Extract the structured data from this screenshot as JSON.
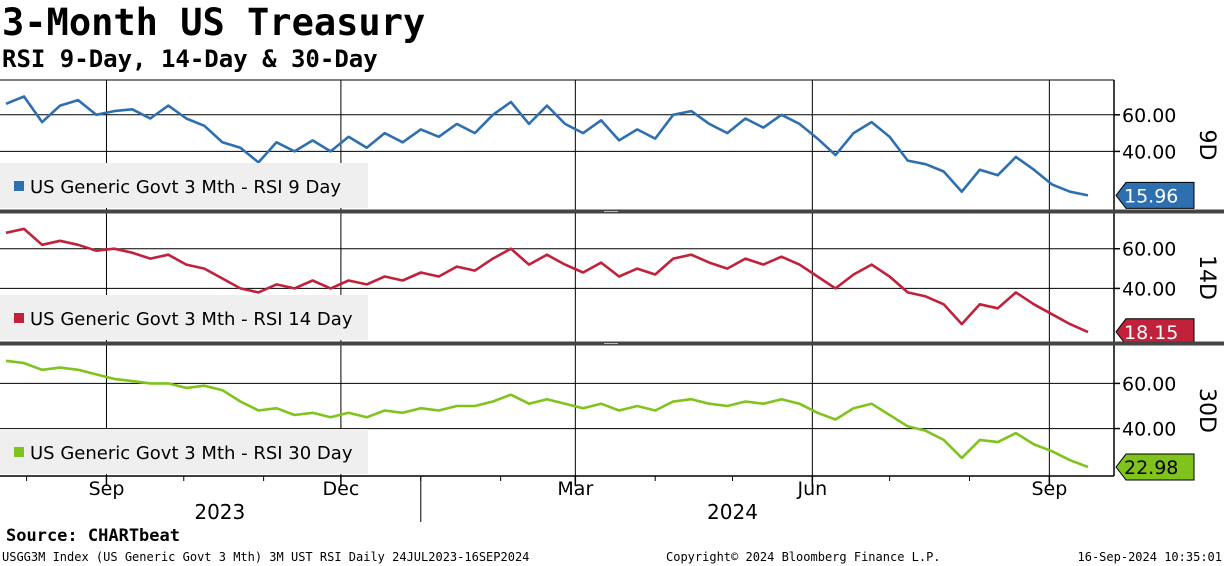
{
  "header": {
    "title": "3-Month US Treasury",
    "subtitle": "RSI 9-Day, 14-Day & 30-Day"
  },
  "footer": {
    "source": "Source: CHARTbeat",
    "left": "USGG3M Index (US Generic Govt 3 Mth) 3M UST RSI  Daily 24JUL2023-16SEP2024",
    "center": "Copyright© 2024 Bloomberg Finance L.P.",
    "right": "16-Sep-2024 10:35:01"
  },
  "chart_data": {
    "type": "line",
    "x_range": [
      "2023-07-24",
      "2024-09-16"
    ],
    "x_tick_labels": [
      "Sep",
      "Dec",
      "Mar",
      "Jun",
      "Sep"
    ],
    "x_tick_dates": [
      "2023-09-01",
      "2023-12-01",
      "2024-03-01",
      "2024-06-01",
      "2024-09-01"
    ],
    "year_labels": [
      {
        "label": "2023",
        "date": "2023-10-15"
      },
      {
        "label": "2024",
        "date": "2024-05-01"
      }
    ],
    "year_divider": "2024-01-01",
    "grid": true,
    "panels": [
      {
        "axis_label": "9D",
        "color": "#2e6fb0",
        "ylim": [
          8,
          79
        ],
        "yticks": [
          "60.00",
          "40.00"
        ],
        "ytick_values": [
          60,
          40
        ],
        "last_value": "15.96",
        "series_name": "US Generic Govt 3 Mth - RSI 9 Day",
        "points": [
          [
            "2023-07-24",
            66
          ],
          [
            "2023-07-31",
            70
          ],
          [
            "2023-08-07",
            56
          ],
          [
            "2023-08-14",
            65
          ],
          [
            "2023-08-21",
            68
          ],
          [
            "2023-08-28",
            60
          ],
          [
            "2023-09-04",
            62
          ],
          [
            "2023-09-11",
            63
          ],
          [
            "2023-09-18",
            58
          ],
          [
            "2023-09-25",
            65
          ],
          [
            "2023-10-02",
            58
          ],
          [
            "2023-10-09",
            54
          ],
          [
            "2023-10-16",
            45
          ],
          [
            "2023-10-23",
            42
          ],
          [
            "2023-10-30",
            34
          ],
          [
            "2023-11-06",
            45
          ],
          [
            "2023-11-13",
            40
          ],
          [
            "2023-11-20",
            46
          ],
          [
            "2023-11-27",
            40
          ],
          [
            "2023-12-04",
            48
          ],
          [
            "2023-12-11",
            42
          ],
          [
            "2023-12-18",
            50
          ],
          [
            "2023-12-25",
            45
          ],
          [
            "2024-01-01",
            52
          ],
          [
            "2024-01-08",
            48
          ],
          [
            "2024-01-15",
            55
          ],
          [
            "2024-01-22",
            50
          ],
          [
            "2024-01-29",
            60
          ],
          [
            "2024-02-05",
            67
          ],
          [
            "2024-02-12",
            55
          ],
          [
            "2024-02-19",
            65
          ],
          [
            "2024-02-26",
            55
          ],
          [
            "2024-03-04",
            50
          ],
          [
            "2024-03-11",
            57
          ],
          [
            "2024-03-18",
            46
          ],
          [
            "2024-03-25",
            52
          ],
          [
            "2024-04-01",
            47
          ],
          [
            "2024-04-08",
            60
          ],
          [
            "2024-04-15",
            62
          ],
          [
            "2024-04-22",
            55
          ],
          [
            "2024-04-29",
            50
          ],
          [
            "2024-05-06",
            58
          ],
          [
            "2024-05-13",
            53
          ],
          [
            "2024-05-20",
            60
          ],
          [
            "2024-05-27",
            55
          ],
          [
            "2024-06-03",
            47
          ],
          [
            "2024-06-10",
            38
          ],
          [
            "2024-06-17",
            50
          ],
          [
            "2024-06-24",
            56
          ],
          [
            "2024-07-01",
            48
          ],
          [
            "2024-07-08",
            35
          ],
          [
            "2024-07-15",
            33
          ],
          [
            "2024-07-22",
            29
          ],
          [
            "2024-07-29",
            18
          ],
          [
            "2024-08-05",
            30
          ],
          [
            "2024-08-12",
            27
          ],
          [
            "2024-08-19",
            37
          ],
          [
            "2024-08-26",
            30
          ],
          [
            "2024-09-02",
            22
          ],
          [
            "2024-09-09",
            18
          ],
          [
            "2024-09-16",
            16
          ]
        ]
      },
      {
        "axis_label": "14D",
        "color": "#c1213a",
        "ylim": [
          13,
          78
        ],
        "yticks": [
          "60.00",
          "40.00"
        ],
        "ytick_values": [
          60,
          40
        ],
        "last_value": "18.15",
        "series_name": "US Generic Govt 3 Mth - RSI 14 Day",
        "points": [
          [
            "2023-07-24",
            68
          ],
          [
            "2023-07-31",
            70
          ],
          [
            "2023-08-07",
            62
          ],
          [
            "2023-08-14",
            64
          ],
          [
            "2023-08-21",
            62
          ],
          [
            "2023-08-28",
            59
          ],
          [
            "2023-09-04",
            60
          ],
          [
            "2023-09-11",
            58
          ],
          [
            "2023-09-18",
            55
          ],
          [
            "2023-09-25",
            57
          ],
          [
            "2023-10-02",
            52
          ],
          [
            "2023-10-09",
            50
          ],
          [
            "2023-10-16",
            45
          ],
          [
            "2023-10-23",
            40
          ],
          [
            "2023-10-30",
            38
          ],
          [
            "2023-11-06",
            42
          ],
          [
            "2023-11-13",
            40
          ],
          [
            "2023-11-20",
            44
          ],
          [
            "2023-11-27",
            40
          ],
          [
            "2023-12-04",
            44
          ],
          [
            "2023-12-11",
            42
          ],
          [
            "2023-12-18",
            46
          ],
          [
            "2023-12-25",
            44
          ],
          [
            "2024-01-01",
            48
          ],
          [
            "2024-01-08",
            46
          ],
          [
            "2024-01-15",
            51
          ],
          [
            "2024-01-22",
            49
          ],
          [
            "2024-01-29",
            55
          ],
          [
            "2024-02-05",
            60
          ],
          [
            "2024-02-12",
            52
          ],
          [
            "2024-02-19",
            57
          ],
          [
            "2024-02-26",
            52
          ],
          [
            "2024-03-04",
            48
          ],
          [
            "2024-03-11",
            53
          ],
          [
            "2024-03-18",
            46
          ],
          [
            "2024-03-25",
            50
          ],
          [
            "2024-04-01",
            47
          ],
          [
            "2024-04-08",
            55
          ],
          [
            "2024-04-15",
            57
          ],
          [
            "2024-04-22",
            53
          ],
          [
            "2024-04-29",
            50
          ],
          [
            "2024-05-06",
            55
          ],
          [
            "2024-05-13",
            52
          ],
          [
            "2024-05-20",
            56
          ],
          [
            "2024-05-27",
            52
          ],
          [
            "2024-06-03",
            46
          ],
          [
            "2024-06-10",
            40
          ],
          [
            "2024-06-17",
            47
          ],
          [
            "2024-06-24",
            52
          ],
          [
            "2024-07-01",
            46
          ],
          [
            "2024-07-08",
            38
          ],
          [
            "2024-07-15",
            36
          ],
          [
            "2024-07-22",
            32
          ],
          [
            "2024-07-29",
            22
          ],
          [
            "2024-08-05",
            32
          ],
          [
            "2024-08-12",
            30
          ],
          [
            "2024-08-19",
            38
          ],
          [
            "2024-08-26",
            32
          ],
          [
            "2024-09-02",
            27
          ],
          [
            "2024-09-09",
            22
          ],
          [
            "2024-09-16",
            18
          ]
        ]
      },
      {
        "axis_label": "30D",
        "color": "#7fc31c",
        "ylim": [
          19,
          77
        ],
        "yticks": [
          "60.00",
          "40.00"
        ],
        "ytick_values": [
          60,
          40
        ],
        "last_value": "22.98",
        "series_name": "US Generic Govt 3 Mth - RSI 30 Day",
        "points": [
          [
            "2023-07-24",
            70
          ],
          [
            "2023-07-31",
            69
          ],
          [
            "2023-08-07",
            66
          ],
          [
            "2023-08-14",
            67
          ],
          [
            "2023-08-21",
            66
          ],
          [
            "2023-08-28",
            64
          ],
          [
            "2023-09-04",
            62
          ],
          [
            "2023-09-11",
            61
          ],
          [
            "2023-09-18",
            60
          ],
          [
            "2023-09-25",
            60
          ],
          [
            "2023-10-02",
            58
          ],
          [
            "2023-10-09",
            59
          ],
          [
            "2023-10-16",
            57
          ],
          [
            "2023-10-23",
            52
          ],
          [
            "2023-10-30",
            48
          ],
          [
            "2023-11-06",
            49
          ],
          [
            "2023-11-13",
            46
          ],
          [
            "2023-11-20",
            47
          ],
          [
            "2023-11-27",
            45
          ],
          [
            "2023-12-04",
            47
          ],
          [
            "2023-12-11",
            45
          ],
          [
            "2023-12-18",
            48
          ],
          [
            "2023-12-25",
            47
          ],
          [
            "2024-01-01",
            49
          ],
          [
            "2024-01-08",
            48
          ],
          [
            "2024-01-15",
            50
          ],
          [
            "2024-01-22",
            50
          ],
          [
            "2024-01-29",
            52
          ],
          [
            "2024-02-05",
            55
          ],
          [
            "2024-02-12",
            51
          ],
          [
            "2024-02-19",
            53
          ],
          [
            "2024-02-26",
            51
          ],
          [
            "2024-03-04",
            49
          ],
          [
            "2024-03-11",
            51
          ],
          [
            "2024-03-18",
            48
          ],
          [
            "2024-03-25",
            50
          ],
          [
            "2024-04-01",
            48
          ],
          [
            "2024-04-08",
            52
          ],
          [
            "2024-04-15",
            53
          ],
          [
            "2024-04-22",
            51
          ],
          [
            "2024-04-29",
            50
          ],
          [
            "2024-05-06",
            52
          ],
          [
            "2024-05-13",
            51
          ],
          [
            "2024-05-20",
            53
          ],
          [
            "2024-05-27",
            51
          ],
          [
            "2024-06-03",
            47
          ],
          [
            "2024-06-10",
            44
          ],
          [
            "2024-06-17",
            49
          ],
          [
            "2024-06-24",
            51
          ],
          [
            "2024-07-01",
            46
          ],
          [
            "2024-07-08",
            41
          ],
          [
            "2024-07-15",
            39
          ],
          [
            "2024-07-22",
            35
          ],
          [
            "2024-07-29",
            27
          ],
          [
            "2024-08-05",
            35
          ],
          [
            "2024-08-12",
            34
          ],
          [
            "2024-08-19",
            38
          ],
          [
            "2024-08-26",
            33
          ],
          [
            "2024-09-02",
            30
          ],
          [
            "2024-09-09",
            26
          ],
          [
            "2024-09-16",
            23
          ]
        ]
      }
    ]
  }
}
